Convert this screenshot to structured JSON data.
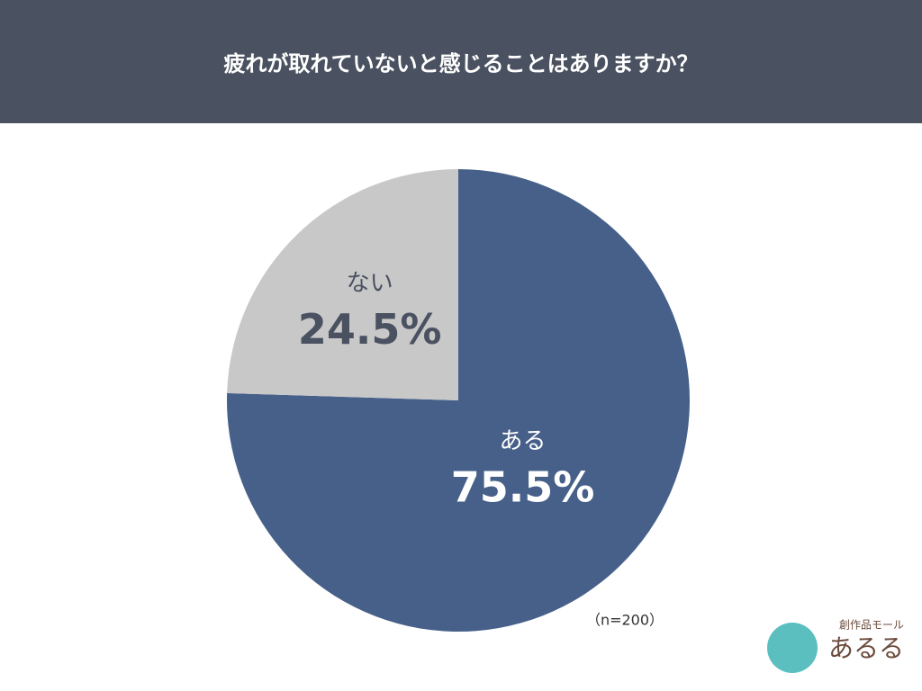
{
  "chart_data": {
    "type": "pie",
    "title": "疲れが取れていないと感じることはありますか？",
    "categories": [
      "ある",
      "ない"
    ],
    "values": [
      75.5,
      24.5
    ],
    "value_labels": [
      "75.5%",
      "24.5%"
    ],
    "colors": [
      "#46608a",
      "#c8c8c8"
    ],
    "note": "（n=200）"
  },
  "logo": {
    "tagline": "創作品モール",
    "name": "あるる"
  }
}
